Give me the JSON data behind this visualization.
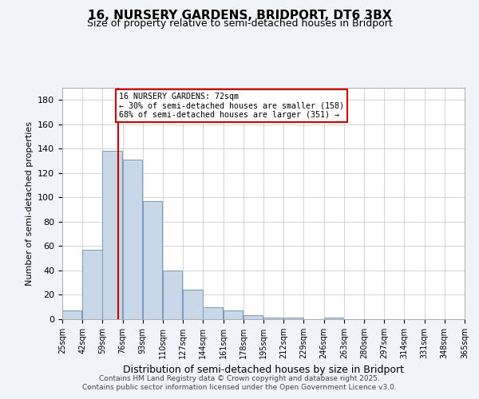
{
  "title1": "16, NURSERY GARDENS, BRIDPORT, DT6 3BX",
  "title2": "Size of property relative to semi-detached houses in Bridport",
  "xlabel": "Distribution of semi-detached houses by size in Bridport",
  "ylabel": "Number of semi-detached properties",
  "property_size": 72,
  "property_label": "16 NURSERY GARDENS: 72sqm",
  "annotation_line1": "← 30% of semi-detached houses are smaller (158)",
  "annotation_line2": "68% of semi-detached houses are larger (351) →",
  "bin_edges": [
    25,
    42,
    59,
    76,
    93,
    110,
    127,
    144,
    161,
    178,
    195,
    212,
    229,
    246,
    263,
    280,
    297,
    314,
    331,
    348,
    365
  ],
  "bin_labels": [
    "25sqm",
    "42sqm",
    "59sqm",
    "76sqm",
    "93sqm",
    "110sqm",
    "127sqm",
    "144sqm",
    "161sqm",
    "178sqm",
    "195sqm",
    "212sqm",
    "229sqm",
    "246sqm",
    "263sqm",
    "280sqm",
    "297sqm",
    "314sqm",
    "331sqm",
    "348sqm",
    "365sqm"
  ],
  "counts": [
    7,
    57,
    138,
    131,
    97,
    40,
    24,
    10,
    7,
    3,
    1,
    1,
    0,
    1,
    0,
    0,
    0,
    0,
    0,
    0
  ],
  "bar_color": "#c8d8e8",
  "bar_edge_color": "#7a9ab5",
  "marker_line_color": "#cc0000",
  "box_edge_color": "#cc0000",
  "ylim": [
    0,
    190
  ],
  "yticks": [
    0,
    20,
    40,
    60,
    80,
    100,
    120,
    140,
    160,
    180
  ],
  "footnote1": "Contains HM Land Registry data © Crown copyright and database right 2025.",
  "footnote2": "Contains public sector information licensed under the Open Government Licence v3.0.",
  "background_color": "#f0f4f8",
  "plot_background_color": "#ffffff",
  "grid_color": "#cccccc"
}
